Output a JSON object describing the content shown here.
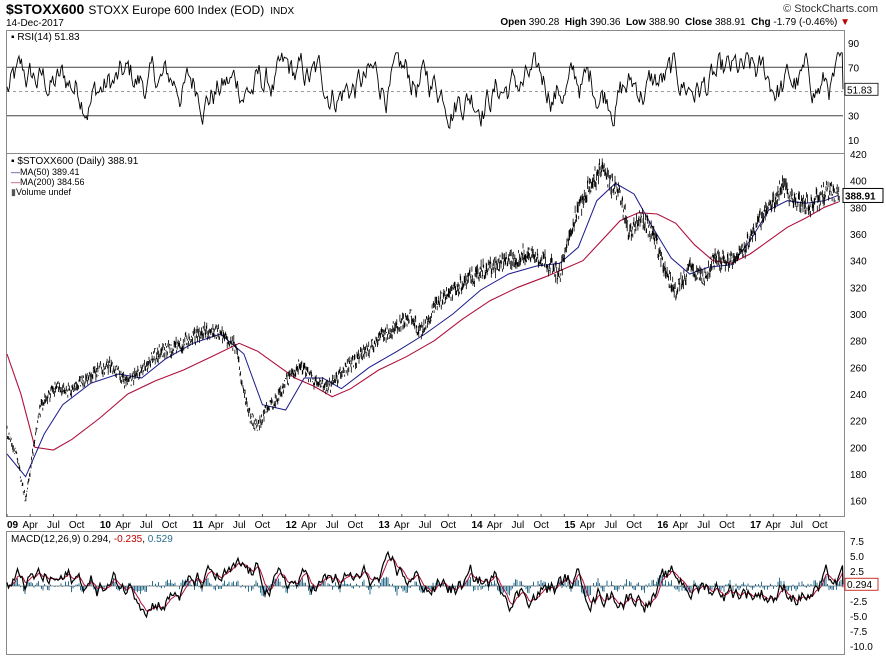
{
  "header": {
    "symbol": "$STOXX600",
    "name": "STOXX Europe 600 Index (EOD)",
    "exchange": "INDX",
    "date": "14-Dec-2017",
    "brand": "© StockCharts.com",
    "open_label": "Open",
    "open": "390.28",
    "high_label": "High",
    "high": "390.36",
    "low_label": "Low",
    "low": "388.90",
    "close_label": "Close",
    "close": "388.91",
    "chg_label": "Chg",
    "chg": "-1.79 (-0.46%)",
    "chg_arrow": "▼"
  },
  "colors": {
    "price": "#000000",
    "ma50": "#1a1a8a",
    "ma200": "#b0103a",
    "histogram": "#2a6e8c",
    "down": "#c00000"
  },
  "chart_data": [
    {
      "type": "line",
      "panel": "rsi",
      "legend": "RSI(14) 51.83",
      "ylim": [
        0,
        100
      ],
      "yticks": [
        "90",
        "70",
        "50",
        "30",
        "10"
      ],
      "reference_lines": [
        70,
        30
      ],
      "last_value": "51.83",
      "note_values": "oscillating between roughly 15 and 80"
    },
    {
      "type": "line",
      "panel": "price",
      "legend": [
        "$STOXX600 (Daily) 388.91",
        "MA(50) 389.41",
        "MA(200) 384.56",
        "Volume undef"
      ],
      "ylim": [
        150,
        420
      ],
      "yticks": [
        "420",
        "400",
        "380",
        "360",
        "340",
        "320",
        "300",
        "280",
        "260",
        "240",
        "220",
        "200",
        "180",
        "160"
      ],
      "x_labels": [
        "09",
        "Apr",
        "Jul",
        "Oct",
        "10",
        "Apr",
        "Jul",
        "Oct",
        "11",
        "Apr",
        "Jul",
        "Oct",
        "12",
        "Apr",
        "Jul",
        "Oct",
        "13",
        "Apr",
        "Jul",
        "Oct",
        "14",
        "Apr",
        "Jul",
        "Oct",
        "15",
        "Apr",
        "Jul",
        "Oct",
        "16",
        "Apr",
        "Jul",
        "Oct",
        "17",
        "Apr",
        "Jul",
        "Oct"
      ],
      "last_value": "388.91",
      "series": [
        {
          "name": "$STOXX600",
          "x": [
            2009.0,
            2009.1,
            2009.2,
            2009.35,
            2009.5,
            2009.7,
            2009.9,
            2010.1,
            2010.3,
            2010.45,
            2010.6,
            2010.8,
            2011.0,
            2011.15,
            2011.3,
            2011.45,
            2011.6,
            2011.7,
            2011.8,
            2011.9,
            2012.0,
            2012.15,
            2012.3,
            2012.45,
            2012.6,
            2012.8,
            2013.0,
            2013.2,
            2013.35,
            2013.45,
            2013.6,
            2013.8,
            2014.0,
            2014.2,
            2014.4,
            2014.6,
            2014.8,
            2014.95,
            2015.1,
            2015.25,
            2015.4,
            2015.5,
            2015.6,
            2015.7,
            2015.8,
            2015.95,
            2016.1,
            2016.2,
            2016.35,
            2016.5,
            2016.6,
            2016.75,
            2016.9,
            2017.1,
            2017.25,
            2017.35,
            2017.5,
            2017.65,
            2017.8,
            2017.95
          ],
          "values": [
            212,
            195,
            160,
            228,
            245,
            242,
            255,
            262,
            248,
            258,
            270,
            275,
            282,
            288,
            285,
            278,
            225,
            215,
            230,
            236,
            248,
            262,
            250,
            244,
            256,
            268,
            282,
            290,
            300,
            285,
            305,
            318,
            328,
            335,
            340,
            345,
            340,
            330,
            370,
            395,
            408,
            398,
            390,
            360,
            372,
            362,
            330,
            318,
            335,
            325,
            340,
            340,
            345,
            370,
            385,
            395,
            385,
            380,
            392,
            389
          ]
        },
        {
          "name": "MA(50)",
          "x": [
            2009.0,
            2009.2,
            2009.4,
            2009.6,
            2009.9,
            2010.2,
            2010.45,
            2010.7,
            2011.0,
            2011.3,
            2011.55,
            2011.75,
            2012.0,
            2012.2,
            2012.4,
            2012.6,
            2012.9,
            2013.2,
            2013.5,
            2013.8,
            2014.1,
            2014.4,
            2014.7,
            2014.95,
            2015.15,
            2015.35,
            2015.55,
            2015.75,
            2015.95,
            2016.15,
            2016.35,
            2016.55,
            2016.8,
            2017.0,
            2017.2,
            2017.4,
            2017.6,
            2017.8,
            2017.95
          ],
          "values": [
            195,
            178,
            210,
            232,
            248,
            255,
            252,
            266,
            278,
            285,
            270,
            232,
            228,
            252,
            252,
            244,
            260,
            272,
            285,
            300,
            318,
            330,
            336,
            338,
            350,
            385,
            398,
            390,
            365,
            342,
            330,
            335,
            337,
            355,
            378,
            385,
            383,
            385,
            389
          ]
        },
        {
          "name": "MA(200)",
          "x": [
            2009.0,
            2009.15,
            2009.3,
            2009.5,
            2009.7,
            2010.0,
            2010.3,
            2010.6,
            2010.9,
            2011.2,
            2011.5,
            2011.7,
            2011.9,
            2012.1,
            2012.3,
            2012.5,
            2012.7,
            2013.0,
            2013.3,
            2013.6,
            2013.9,
            2014.2,
            2014.5,
            2014.8,
            2015.0,
            2015.2,
            2015.4,
            2015.6,
            2015.8,
            2016.0,
            2016.2,
            2016.4,
            2016.6,
            2016.8,
            2017.0,
            2017.2,
            2017.4,
            2017.6,
            2017.8,
            2017.95
          ],
          "values": [
            270,
            240,
            200,
            198,
            206,
            222,
            240,
            250,
            258,
            268,
            278,
            272,
            262,
            252,
            246,
            238,
            244,
            258,
            268,
            280,
            296,
            310,
            320,
            328,
            334,
            340,
            355,
            370,
            376,
            375,
            368,
            352,
            340,
            338,
            345,
            355,
            365,
            372,
            380,
            384
          ]
        }
      ]
    },
    {
      "type": "line",
      "panel": "macd",
      "legend_parts": [
        "MACD(12,26,9)",
        "0.294",
        "-0.235",
        "0.529"
      ],
      "ylim": [
        -11,
        9
      ],
      "yticks": [
        "7.5",
        "5.0",
        "2.5",
        "0.0",
        "-2.5",
        "-5.0",
        "-7.5",
        "-10.0"
      ],
      "last_value": "0.294",
      "series": [
        {
          "name": "MACD",
          "values": [
            0.294
          ]
        },
        {
          "name": "Signal",
          "values": [
            -0.235
          ]
        },
        {
          "name": "Histogram",
          "values": [
            0.529
          ]
        }
      ]
    }
  ]
}
